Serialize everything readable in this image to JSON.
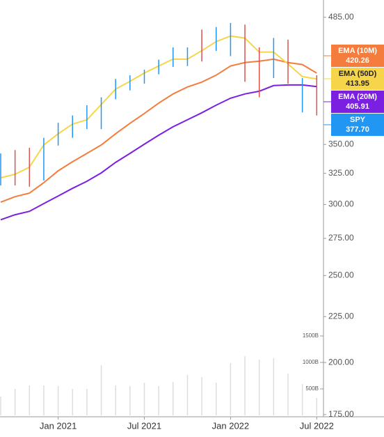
{
  "chart_data": {
    "type": "candlestick",
    "log_scale": true,
    "categories": [
      null,
      null,
      null,
      null,
      "Jan 2021",
      null,
      null,
      null,
      null,
      null,
      "Jul 2021",
      null,
      null,
      null,
      null,
      null,
      "Jan 2022",
      null,
      null,
      null,
      null,
      null,
      "Jul 2022"
    ],
    "ylim": [
      174,
      507
    ],
    "yticks": [
      {
        "value": 485,
        "label": "485.00"
      },
      {
        "value": 350,
        "label": "350.00"
      },
      {
        "value": 325,
        "label": "325.00"
      },
      {
        "value": 300,
        "label": "300.00"
      },
      {
        "value": 275,
        "label": "275.00"
      },
      {
        "value": 250,
        "label": "250.00"
      },
      {
        "value": 225,
        "label": "225.00"
      },
      {
        "value": 200,
        "label": "200.00"
      },
      {
        "value": 175,
        "label": "175.00"
      }
    ],
    "candles": {
      "name": "SPY",
      "color": "#2196f3",
      "last": {
        "value": 377.7,
        "label": "377.70"
      },
      "high": [
        342,
        345,
        347,
        356,
        370,
        377,
        387,
        395,
        414,
        418,
        424,
        435,
        449,
        449,
        470,
        473,
        478,
        476,
        449,
        460,
        458,
        415,
        418
      ],
      "low": [
        315,
        315,
        314,
        319,
        349,
        356,
        364,
        364,
        393,
        402,
        409,
        419,
        427,
        428,
        433,
        445,
        439,
        411,
        395,
        415,
        409,
        380,
        377
      ],
      "bar_colors": [
        "#2196f3",
        "#d9534f",
        "#d9534f",
        "#2196f3",
        "#2196f3",
        "#2196f3",
        "#2196f3",
        "#2196f3",
        "#2196f3",
        "#2196f3",
        "#2196f3",
        "#2196f3",
        "#2196f3",
        "#2196f3",
        "#d9534f",
        "#2196f3",
        "#2196f3",
        "#d9534f",
        "#d9534f",
        "#2196f3",
        "#d9534f",
        "#2196f3",
        "#d9534f"
      ]
    },
    "series": [
      {
        "name": "EMA (10M)",
        "color": "#f47c3c",
        "text_color": "#ffffff",
        "values": [
          301.8,
          306.1,
          308.9,
          317.3,
          327.1,
          334.8,
          342.0,
          349.5,
          359.7,
          369.5,
          378.9,
          389.2,
          398.4,
          405.6,
          410.7,
          418.1,
          428.0,
          431.8,
          433.3,
          435.6,
          431.8,
          429.6,
          420.26
        ]
      },
      {
        "name": "EMA (50D)",
        "color": "#f7d54a",
        "text_color": "#222222",
        "values": [
          321.3,
          324.2,
          330.1,
          349.6,
          359.7,
          368.8,
          372.8,
          387.8,
          403.4,
          411.4,
          420.4,
          428.0,
          435.6,
          435.6,
          445.2,
          455.7,
          462.2,
          459.8,
          443.6,
          443.6,
          430.3,
          416.6,
          413.95
        ]
      },
      {
        "name": "EMA (20M)",
        "color": "#7b1fe0",
        "text_color": "#ffffff",
        "values": [
          288.5,
          292.2,
          294.8,
          300.7,
          306.6,
          312.7,
          318.4,
          325.3,
          334.2,
          342.0,
          350.2,
          358.4,
          366.2,
          372.8,
          379.6,
          387.1,
          394.1,
          398.4,
          401.2,
          407.0,
          407.7,
          407.7,
          405.91
        ]
      }
    ],
    "volume": {
      "color": "#dddddd",
      "ylim": [
        0,
        1500
      ],
      "yticks": [
        {
          "value": 1500,
          "label": "1500B"
        },
        {
          "value": 1000,
          "label": "1000B"
        },
        {
          "value": 500,
          "label": "500B"
        }
      ],
      "values": [
        355,
        500,
        566,
        566,
        553,
        500,
        500,
        947,
        566,
        553,
        618,
        553,
        632,
        763,
        724,
        618,
        987,
        1118,
        1053,
        1079,
        789,
        592,
        329
      ]
    }
  }
}
